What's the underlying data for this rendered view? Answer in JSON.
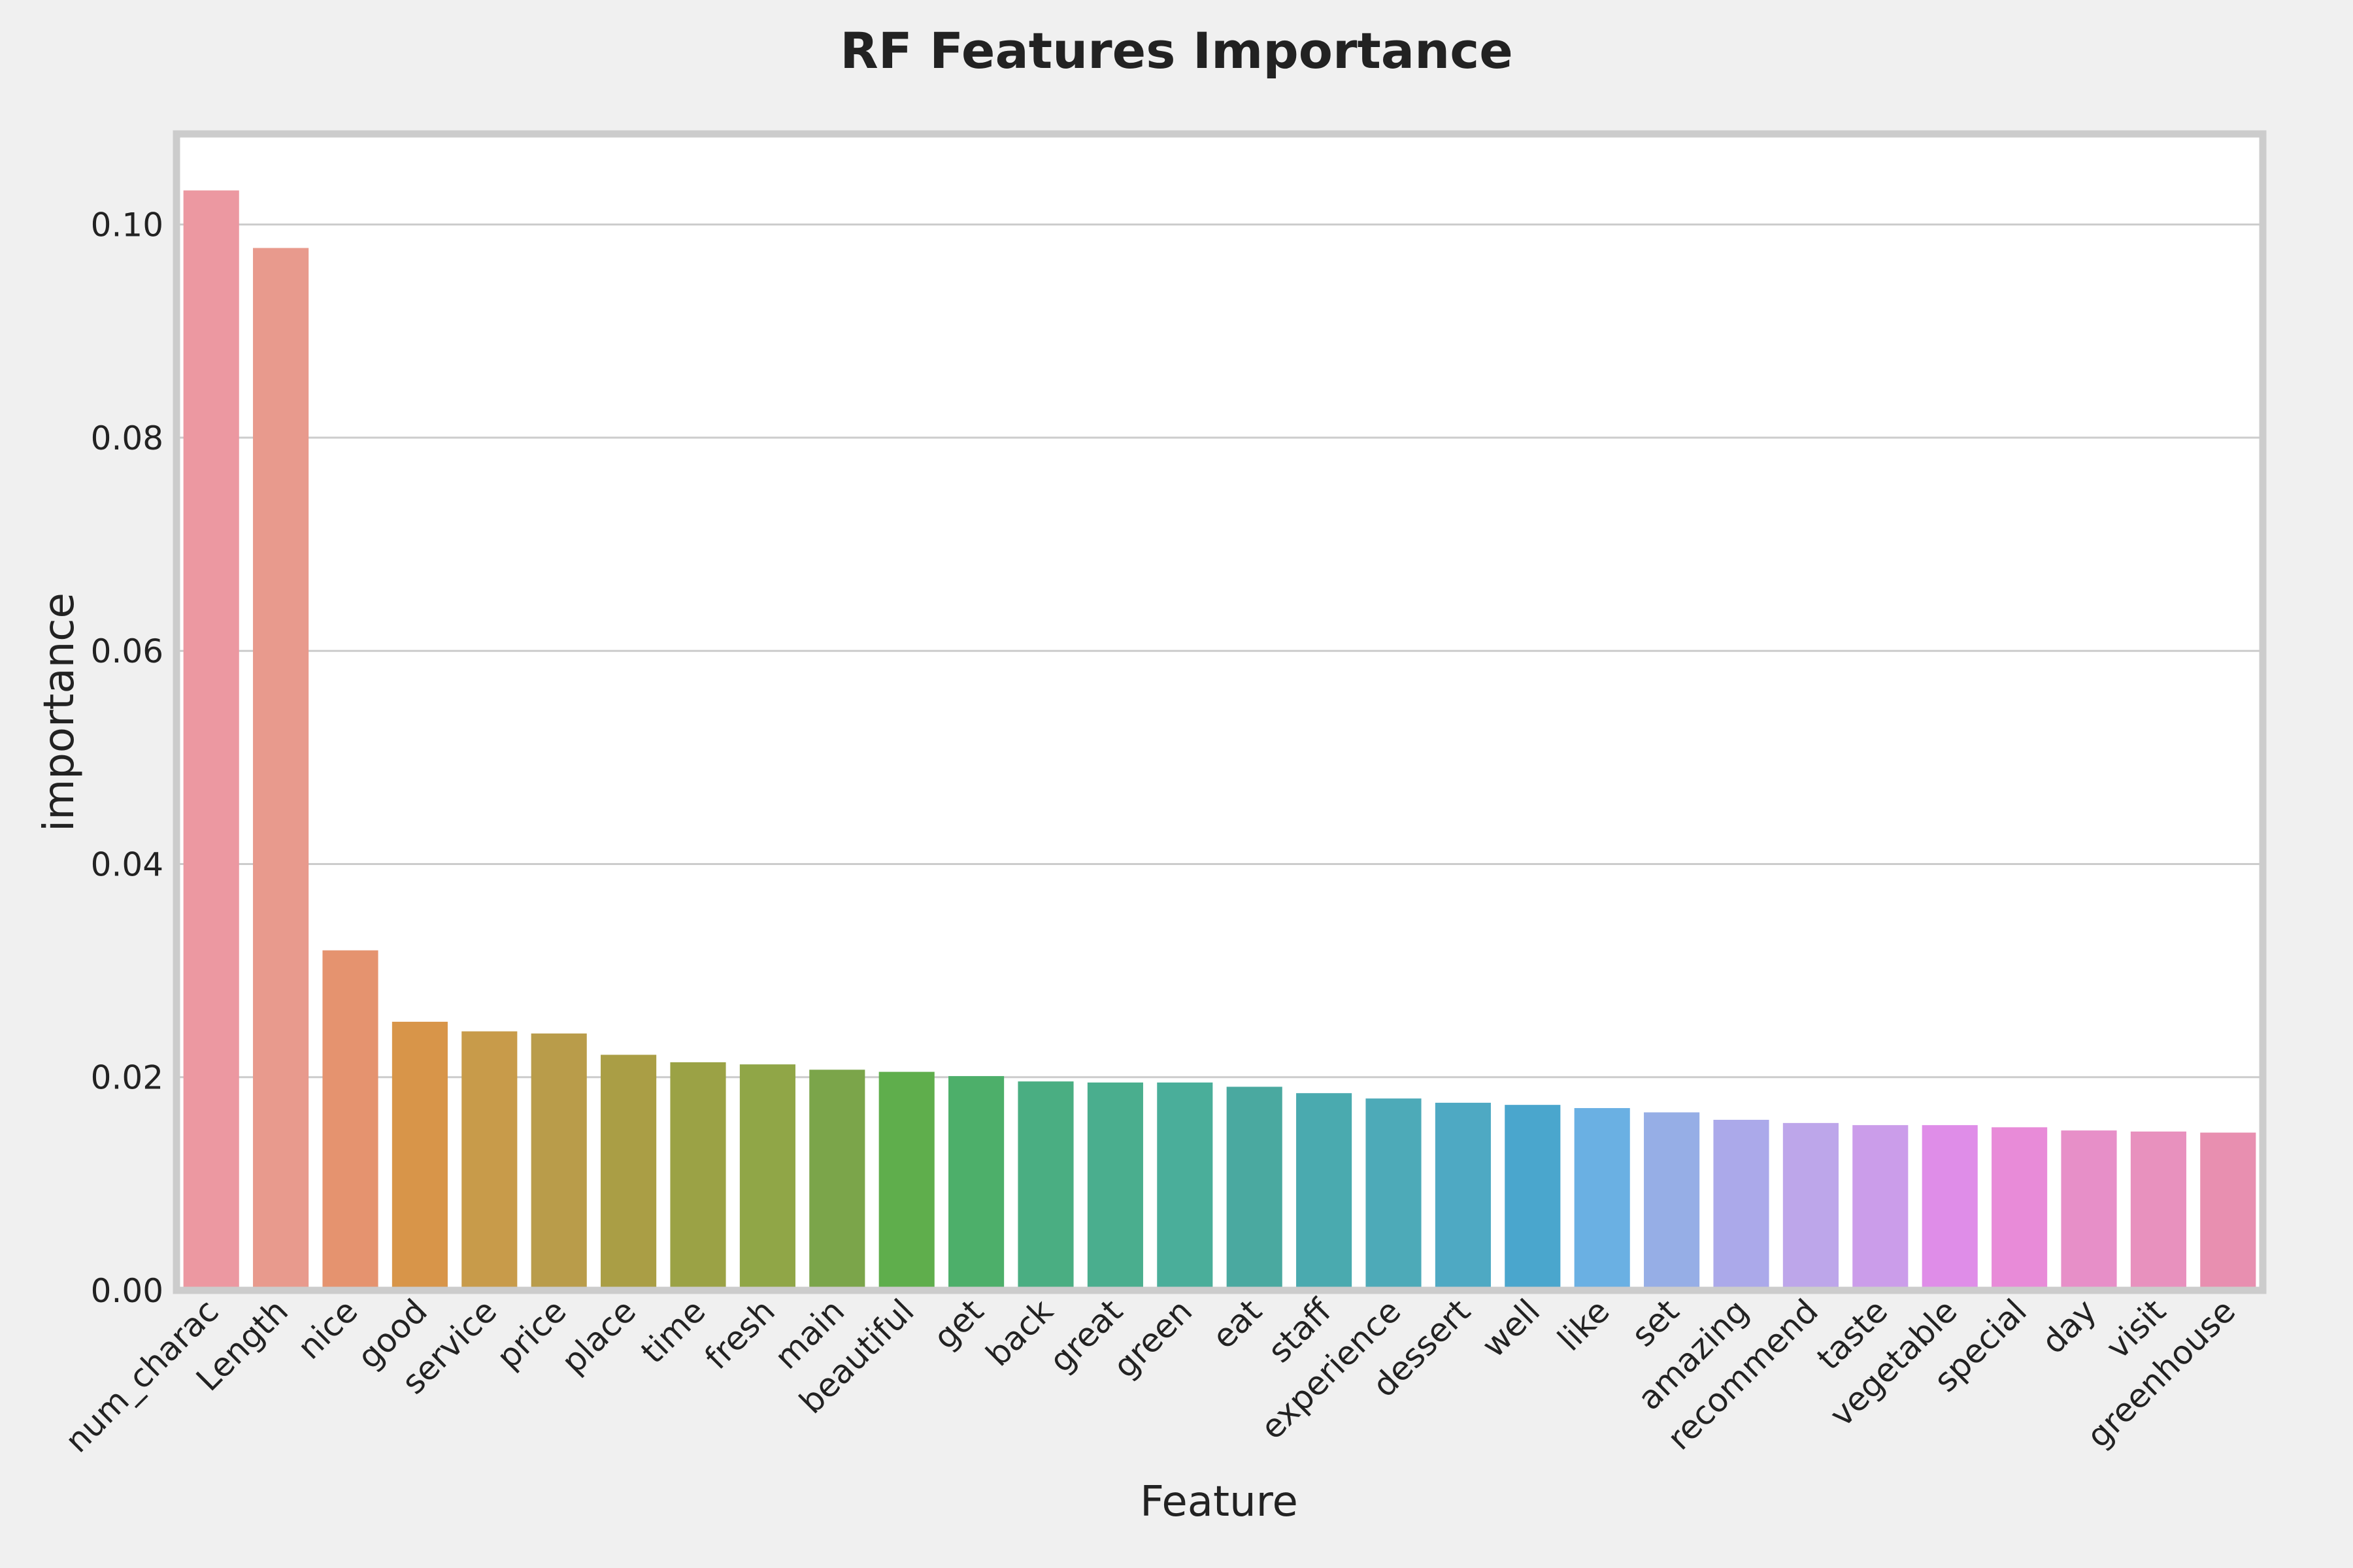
{
  "chart_data": {
    "type": "bar",
    "title": "RF Features Importance",
    "xlabel": "Feature",
    "ylabel": "importance",
    "ylim": [
      0,
      0.1085
    ],
    "yticks": [
      "0.00",
      "0.02",
      "0.04",
      "0.06",
      "0.08",
      "0.10"
    ],
    "grid": "horizontal",
    "categories": [
      "num_charac",
      "Length",
      "nice",
      "good",
      "service",
      "price",
      "place",
      "time",
      "fresh",
      "main",
      "beautiful",
      "get",
      "back",
      "great",
      "green",
      "eat",
      "staff",
      "experience",
      "dessert",
      "well",
      "like",
      "set",
      "amazing",
      "recommend",
      "taste",
      "vegetable",
      "special",
      "day",
      "visit",
      "greenhouse"
    ],
    "values": [
      0.1032,
      0.0978,
      0.0319,
      0.0252,
      0.0243,
      0.0241,
      0.0221,
      0.0214,
      0.0212,
      0.0207,
      0.0205,
      0.0201,
      0.0196,
      0.0195,
      0.0195,
      0.0191,
      0.0185,
      0.018,
      0.0176,
      0.0174,
      0.0171,
      0.0167,
      0.016,
      0.0157,
      0.0155,
      0.0155,
      0.0153,
      0.015,
      0.0149,
      0.0148
    ],
    "colors": [
      "#ec98a1",
      "#e89a8d",
      "#e5936f",
      "#d89549",
      "#c89b4a",
      "#b99c4a",
      "#aa9e45",
      "#9ba245",
      "#90a647",
      "#7ba54a",
      "#5fae4c",
      "#4daf6a",
      "#4aae82",
      "#4aae8e",
      "#4aae9a",
      "#4aa9a0",
      "#4aaaaf",
      "#4daab8",
      "#4ea9c3",
      "#4aa6cd",
      "#6ab0e3",
      "#96aee6",
      "#aba9ea",
      "#bda6ea",
      "#cb9dea",
      "#df8de8",
      "#e88bd8",
      "#e78fc8",
      "#e891be",
      "#e88fb0"
    ]
  }
}
